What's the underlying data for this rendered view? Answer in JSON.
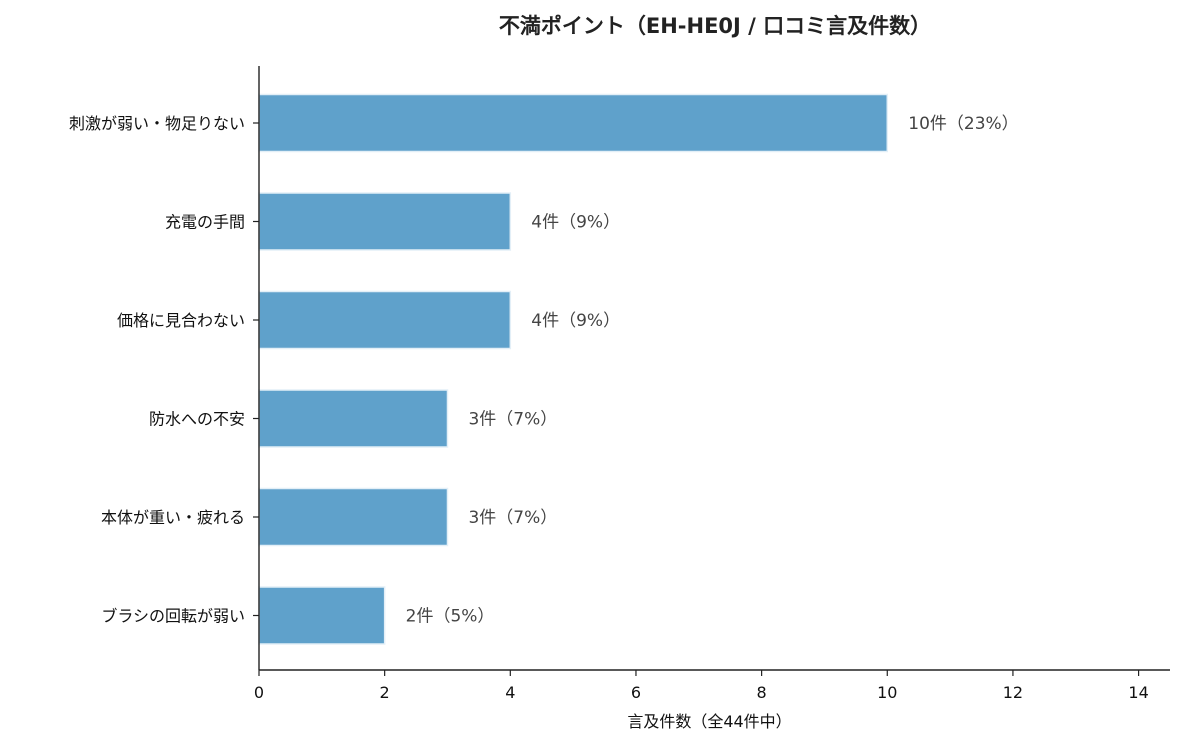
{
  "chart_data": {
    "type": "bar",
    "orientation": "horizontal",
    "title": "不満ポイント（EH-HE0J / 口コミ言及件数）",
    "xlabel": "言及件数（全44件中）",
    "ylabel": "",
    "xlim": [
      0,
      14.5
    ],
    "xticks": [
      0,
      2,
      4,
      6,
      8,
      10,
      12,
      14
    ],
    "grid": false,
    "categories": [
      "刺激が弱い・物足りない",
      "充電の手間",
      "価格に見合わない",
      "防水への不安",
      "本体が重い・疲れる",
      "ブラシの回転が弱い"
    ],
    "values": [
      10,
      4,
      4,
      3,
      3,
      2
    ],
    "data_labels": [
      "10件（23%）",
      "4件（9%）",
      "4件（9%）",
      "3件（7%）",
      "3件（7%）",
      "2件（5%）"
    ],
    "colors": {
      "bar": "#5fa1cb",
      "bar_edge": "#e3eff7",
      "axis": "#222222",
      "data_label": "#444444"
    }
  }
}
